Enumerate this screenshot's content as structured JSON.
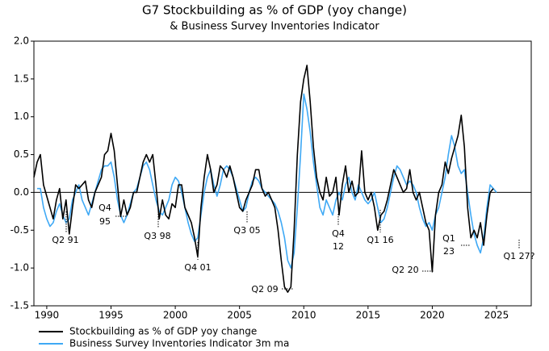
{
  "chart_data": {
    "type": "line",
    "title": "G7 Stockbuilding as % of GDP (yoy change)",
    "subtitle": "& Business Survey Inventories Indicator",
    "xlim": [
      1989,
      2027.7
    ],
    "xticks": [
      1990,
      1995,
      2000,
      2005,
      2010,
      2015,
      2020,
      2025
    ],
    "ylim": [
      -1.5,
      2.0
    ],
    "yticks": [
      {
        "value": -1.5,
        "label": "-1.5"
      },
      {
        "value": -1.0,
        "label": "-1.0"
      },
      -0.5,
      {
        "value": 0,
        "label": "0.0"
      },
      0.5,
      {
        "value": 1.0,
        "label": "1.0"
      },
      1.5,
      {
        "value": 2.0,
        "label": "2.0"
      }
    ],
    "zero_line": true,
    "legend": "bottom-left",
    "series": [
      {
        "name": "Stockbuilding as % of GDP yoy change",
        "color": "#000000",
        "x": [
          1989,
          1989.25,
          1989.5,
          1989.75,
          1990,
          1990.25,
          1990.5,
          1990.75,
          1991,
          1991.25,
          1991.5,
          1991.75,
          1992,
          1992.25,
          1992.5,
          1992.75,
          1993,
          1993.25,
          1993.5,
          1993.75,
          1994,
          1994.25,
          1994.5,
          1994.75,
          1995,
          1995.25,
          1995.5,
          1995.75,
          1996,
          1996.25,
          1996.5,
          1996.75,
          1997,
          1997.25,
          1997.5,
          1997.75,
          1998,
          1998.25,
          1998.5,
          1998.75,
          1999,
          1999.25,
          1999.5,
          1999.75,
          2000,
          2000.25,
          2000.5,
          2000.75,
          2001,
          2001.25,
          2001.5,
          2001.75,
          2002,
          2002.25,
          2002.5,
          2002.75,
          2003,
          2003.25,
          2003.5,
          2003.75,
          2004,
          2004.25,
          2004.5,
          2004.75,
          2005,
          2005.25,
          2005.5,
          2005.75,
          2006,
          2006.25,
          2006.5,
          2006.75,
          2007,
          2007.25,
          2007.5,
          2007.75,
          2008,
          2008.25,
          2008.5,
          2008.75,
          2009,
          2009.25,
          2009.5,
          2009.75,
          2010,
          2010.25,
          2010.5,
          2010.75,
          2011,
          2011.25,
          2011.5,
          2011.75,
          2012,
          2012.25,
          2012.5,
          2012.75,
          2013,
          2013.25,
          2013.5,
          2013.75,
          2014,
          2014.25,
          2014.5,
          2014.75,
          2015,
          2015.25,
          2015.5,
          2015.75,
          2016,
          2016.25,
          2016.5,
          2016.75,
          2017,
          2017.25,
          2017.5,
          2017.75,
          2018,
          2018.25,
          2018.5,
          2018.75,
          2019,
          2019.25,
          2019.5,
          2019.75,
          2020,
          2020.25,
          2020.5,
          2020.75,
          2021,
          2021.25,
          2021.5,
          2021.75,
          2022,
          2022.25,
          2022.5,
          2022.75,
          2023,
          2023.25,
          2023.5,
          2023.75,
          2024,
          2024.25,
          2024.5,
          2024.75
        ],
        "values": [
          0.2,
          0.4,
          0.5,
          0.1,
          -0.05,
          -0.2,
          -0.35,
          -0.1,
          0.05,
          -0.35,
          -0.1,
          -0.55,
          -0.2,
          0.1,
          0.05,
          0.1,
          0.15,
          -0.1,
          -0.2,
          0,
          0.1,
          0.2,
          0.5,
          0.55,
          0.78,
          0.55,
          0.1,
          -0.32,
          -0.1,
          -0.3,
          -0.2,
          0,
          0,
          0.2,
          0.4,
          0.5,
          0.4,
          0.5,
          0.1,
          -0.35,
          -0.1,
          -0.3,
          -0.35,
          -0.15,
          -0.2,
          0.1,
          0.1,
          -0.2,
          -0.3,
          -0.4,
          -0.6,
          -0.85,
          -0.2,
          0.2,
          0.5,
          0.3,
          0,
          0.1,
          0.35,
          0.3,
          0.2,
          0.35,
          0.2,
          0,
          -0.2,
          -0.25,
          -0.1,
          0,
          0.1,
          0.3,
          0.3,
          0.05,
          -0.05,
          0,
          -0.1,
          -0.2,
          -0.5,
          -0.9,
          -1.25,
          -1.32,
          -1.25,
          -0.5,
          0.5,
          1.2,
          1.5,
          1.68,
          1.2,
          0.6,
          0.2,
          0,
          -0.1,
          0.2,
          -0.05,
          0,
          0.2,
          -0.3,
          0.1,
          0.35,
          0,
          0.15,
          -0.05,
          0,
          0.55,
          0,
          -0.1,
          0,
          -0.2,
          -0.5,
          -0.3,
          -0.25,
          -0.1,
          0.1,
          0.3,
          0.2,
          0.1,
          0,
          0.05,
          0.3,
          0,
          -0.1,
          0,
          -0.2,
          -0.4,
          -0.5,
          -1.05,
          -0.3,
          0,
          0.1,
          0.4,
          0.25,
          0.45,
          0.6,
          0.75,
          1.02,
          0.6,
          -0.2,
          -0.6,
          -0.5,
          -0.6,
          -0.4,
          -0.7,
          -0.3,
          0,
          0.05
        ]
      },
      {
        "name": "Business Survey Inventories Indicator 3m ma",
        "color": "#3fa9f5",
        "x": [
          1989.25,
          1989.5,
          1989.75,
          1990,
          1990.25,
          1990.5,
          1990.75,
          1991,
          1991.25,
          1991.5,
          1991.75,
          1992,
          1992.25,
          1992.5,
          1992.75,
          1993,
          1993.25,
          1993.5,
          1993.75,
          1994,
          1994.25,
          1994.5,
          1994.75,
          1995,
          1995.25,
          1995.5,
          1995.75,
          1996,
          1996.25,
          1996.5,
          1996.75,
          1997,
          1997.25,
          1997.5,
          1997.75,
          1998,
          1998.25,
          1998.5,
          1998.75,
          1999,
          1999.25,
          1999.5,
          1999.75,
          2000,
          2000.25,
          2000.5,
          2000.75,
          2001,
          2001.25,
          2001.5,
          2001.75,
          2002,
          2002.25,
          2002.5,
          2002.75,
          2003,
          2003.25,
          2003.5,
          2003.75,
          2004,
          2004.25,
          2004.5,
          2004.75,
          2005,
          2005.25,
          2005.5,
          2005.75,
          2006,
          2006.25,
          2006.5,
          2006.75,
          2007,
          2007.25,
          2007.5,
          2007.75,
          2008,
          2008.25,
          2008.5,
          2008.75,
          2009,
          2009.25,
          2009.5,
          2009.75,
          2010,
          2010.25,
          2010.5,
          2010.75,
          2011,
          2011.25,
          2011.5,
          2011.75,
          2012,
          2012.25,
          2012.5,
          2012.75,
          2013,
          2013.25,
          2013.5,
          2013.75,
          2014,
          2014.25,
          2014.5,
          2014.75,
          2015,
          2015.25,
          2015.5,
          2015.75,
          2016,
          2016.25,
          2016.5,
          2016.75,
          2017,
          2017.25,
          2017.5,
          2017.75,
          2018,
          2018.25,
          2018.5,
          2018.75,
          2019,
          2019.25,
          2019.5,
          2019.75,
          2020,
          2020.25,
          2020.5,
          2020.75,
          2021,
          2021.25,
          2021.5,
          2021.75,
          2022,
          2022.25,
          2022.5,
          2022.75,
          2023,
          2023.25,
          2023.5,
          2023.75,
          2024,
          2024.25,
          2024.5,
          2024.75,
          2025
        ],
        "values": [
          0.05,
          0.05,
          -0.2,
          -0.35,
          -0.45,
          -0.4,
          -0.25,
          -0.15,
          -0.3,
          -0.4,
          -0.35,
          -0.1,
          0,
          0.1,
          -0.1,
          -0.2,
          -0.3,
          -0.15,
          0,
          0.15,
          0.3,
          0.35,
          0.35,
          0.4,
          0.2,
          -0.1,
          -0.3,
          -0.4,
          -0.3,
          -0.15,
          0,
          0.05,
          0.2,
          0.35,
          0.4,
          0.3,
          0.1,
          -0.1,
          -0.25,
          -0.3,
          -0.2,
          -0.1,
          0.1,
          0.2,
          0.15,
          0,
          -0.2,
          -0.4,
          -0.55,
          -0.65,
          -0.6,
          -0.3,
          0,
          0.2,
          0.3,
          0.1,
          -0.05,
          0.1,
          0.3,
          0.35,
          0.3,
          0.2,
          0.05,
          -0.1,
          -0.25,
          -0.2,
          0,
          0.15,
          0.2,
          0.15,
          0.05,
          0,
          -0.05,
          -0.1,
          -0.15,
          -0.25,
          -0.4,
          -0.6,
          -0.9,
          -1.0,
          -0.8,
          -0.2,
          0.5,
          1.3,
          1.1,
          0.8,
          0.4,
          0.1,
          -0.2,
          -0.3,
          -0.1,
          -0.2,
          -0.3,
          -0.1,
          0,
          -0.1,
          0.1,
          0.2,
          0,
          -0.1,
          0.1,
          0,
          -0.1,
          -0.15,
          -0.1,
          0,
          -0.2,
          -0.4,
          -0.35,
          -0.2,
          0,
          0.2,
          0.35,
          0.3,
          0.2,
          0.1,
          0.15,
          0.1,
          0,
          -0.2,
          -0.35,
          -0.45,
          -0.4,
          -0.5,
          -0.3,
          -0.2,
          0,
          0.2,
          0.5,
          0.75,
          0.6,
          0.35,
          0.25,
          0.3,
          0,
          -0.3,
          -0.55,
          -0.7,
          -0.8,
          -0.6,
          -0.2,
          0.1,
          0.05,
          0
        ]
      }
    ],
    "annotations": [
      [
        "Q2 91"
      ],
      [
        "Q4",
        "95"
      ],
      [
        "Q3 98"
      ],
      [
        "Q4 01"
      ],
      [
        "Q3 05"
      ],
      [
        "Q2 09"
      ],
      [
        "Q4",
        "12"
      ],
      [
        "Q1 16"
      ],
      [
        "Q2 20"
      ],
      [
        "Q1",
        "23"
      ],
      [
        "Q1 27?"
      ]
    ]
  }
}
